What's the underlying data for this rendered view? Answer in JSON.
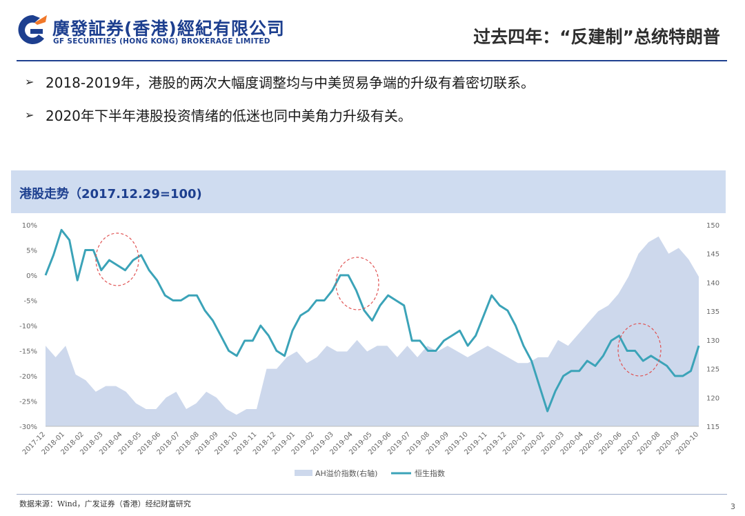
{
  "header": {
    "logo_cn": "廣發証券(香港)經紀有限公司",
    "logo_en": "GF SECURITIES (HONG KONG) BROKERAGE LIMITED",
    "page_title": "过去四年：“反建制”总统特朗普"
  },
  "bullets": [
    {
      "marker": "➢",
      "text": "2018-2019年，港股的两次大幅度调整均与中美贸易争端的升级有着密切联系。"
    },
    {
      "marker": "➢",
      "text": "2020年下半年港股投资情绪的低迷也同中美角力升级有关。"
    }
  ],
  "footer": {
    "source": "数据来源：Wind，广发证券（香港）经纪财富研究",
    "page_number": "3"
  },
  "colors": {
    "brand_blue": "#1d3f8f",
    "brand_orange": "#f0782a",
    "line_series": "#3ba3b8",
    "area_series": "#cdd8ec",
    "highlight_circle": "#e05050"
  },
  "chart_data": {
    "type": "line",
    "title": "港股走势（2017.12.29=100)",
    "x_tick_labels": [
      "2017-12",
      "2018-01",
      "2018-02",
      "2018-03",
      "2018-04",
      "2018-05",
      "2018-06",
      "2018-07",
      "2018-08",
      "2018-09",
      "2018-10",
      "2018-11",
      "2018-12",
      "2019-01",
      "2019-02",
      "2019-03",
      "2019-04",
      "2019-05",
      "2019-06",
      "2019-07",
      "2019-08",
      "2019-09",
      "2019-10",
      "2019-11",
      "2019-12",
      "2020-01",
      "2020-02",
      "2020-03",
      "2020-04",
      "2020-05",
      "2020-06",
      "2020-07",
      "2020-08",
      "2020-09",
      "2020-10"
    ],
    "y_left": {
      "ticks": [
        "10%",
        "5%",
        "0%",
        "-5%",
        "-10%",
        "-15%",
        "-20%",
        "-25%",
        "-30%"
      ],
      "range": [
        -30,
        10
      ]
    },
    "y_right": {
      "ticks": [
        "150",
        "145",
        "140",
        "135",
        "130",
        "125",
        "120",
        "115"
      ],
      "range": [
        115,
        150
      ]
    },
    "grid": false,
    "legend_position": "bottom",
    "series": [
      {
        "name": "AH溢价指数(右轴)",
        "type": "area",
        "axis": "right",
        "values": [
          129,
          127,
          129,
          124,
          123,
          121,
          122,
          122,
          121,
          119,
          118,
          118,
          120,
          121,
          118,
          119,
          121,
          120,
          118,
          117,
          118,
          118,
          125,
          125,
          127,
          128,
          126,
          127,
          129,
          128,
          128,
          130,
          128,
          129,
          129,
          127,
          129,
          127,
          129,
          128,
          129,
          128,
          127,
          128,
          129,
          128,
          127,
          126,
          126,
          127,
          127,
          130,
          129,
          131,
          133,
          135,
          136,
          138,
          141,
          145,
          147,
          148,
          145,
          146,
          144,
          141
        ]
      },
      {
        "name": "恒生指数",
        "type": "line",
        "axis": "left",
        "values": [
          0,
          4,
          9,
          7,
          -1,
          5,
          5,
          1,
          3,
          2,
          1,
          3,
          4,
          1,
          -1,
          -4,
          -5,
          -5,
          -4,
          -4,
          -7,
          -9,
          -12,
          -15,
          -16,
          -13,
          -13,
          -10,
          -12,
          -15,
          -16,
          -11,
          -8,
          -7,
          -5,
          -5,
          -3,
          0,
          0,
          -3,
          -7,
          -9,
          -6,
          -4,
          -5,
          -6,
          -13,
          -13,
          -15,
          -15,
          -13,
          -12,
          -11,
          -14,
          -12,
          -8,
          -4,
          -6,
          -7,
          -10,
          -14,
          -17,
          -22,
          -27,
          -23,
          -20,
          -19,
          -19,
          -17,
          -18,
          -16,
          -13,
          -12,
          -15,
          -15,
          -17,
          -16,
          -17,
          -18,
          -20,
          -20,
          -19,
          -14
        ]
      }
    ],
    "annotations": [
      {
        "type": "circle",
        "at": "2018-03~2018-05",
        "meaning": "highlight"
      },
      {
        "type": "circle",
        "at": "2019-04~2019-05",
        "meaning": "highlight"
      },
      {
        "type": "circle",
        "at": "2020-06~2020-07",
        "meaning": "highlight"
      }
    ]
  }
}
